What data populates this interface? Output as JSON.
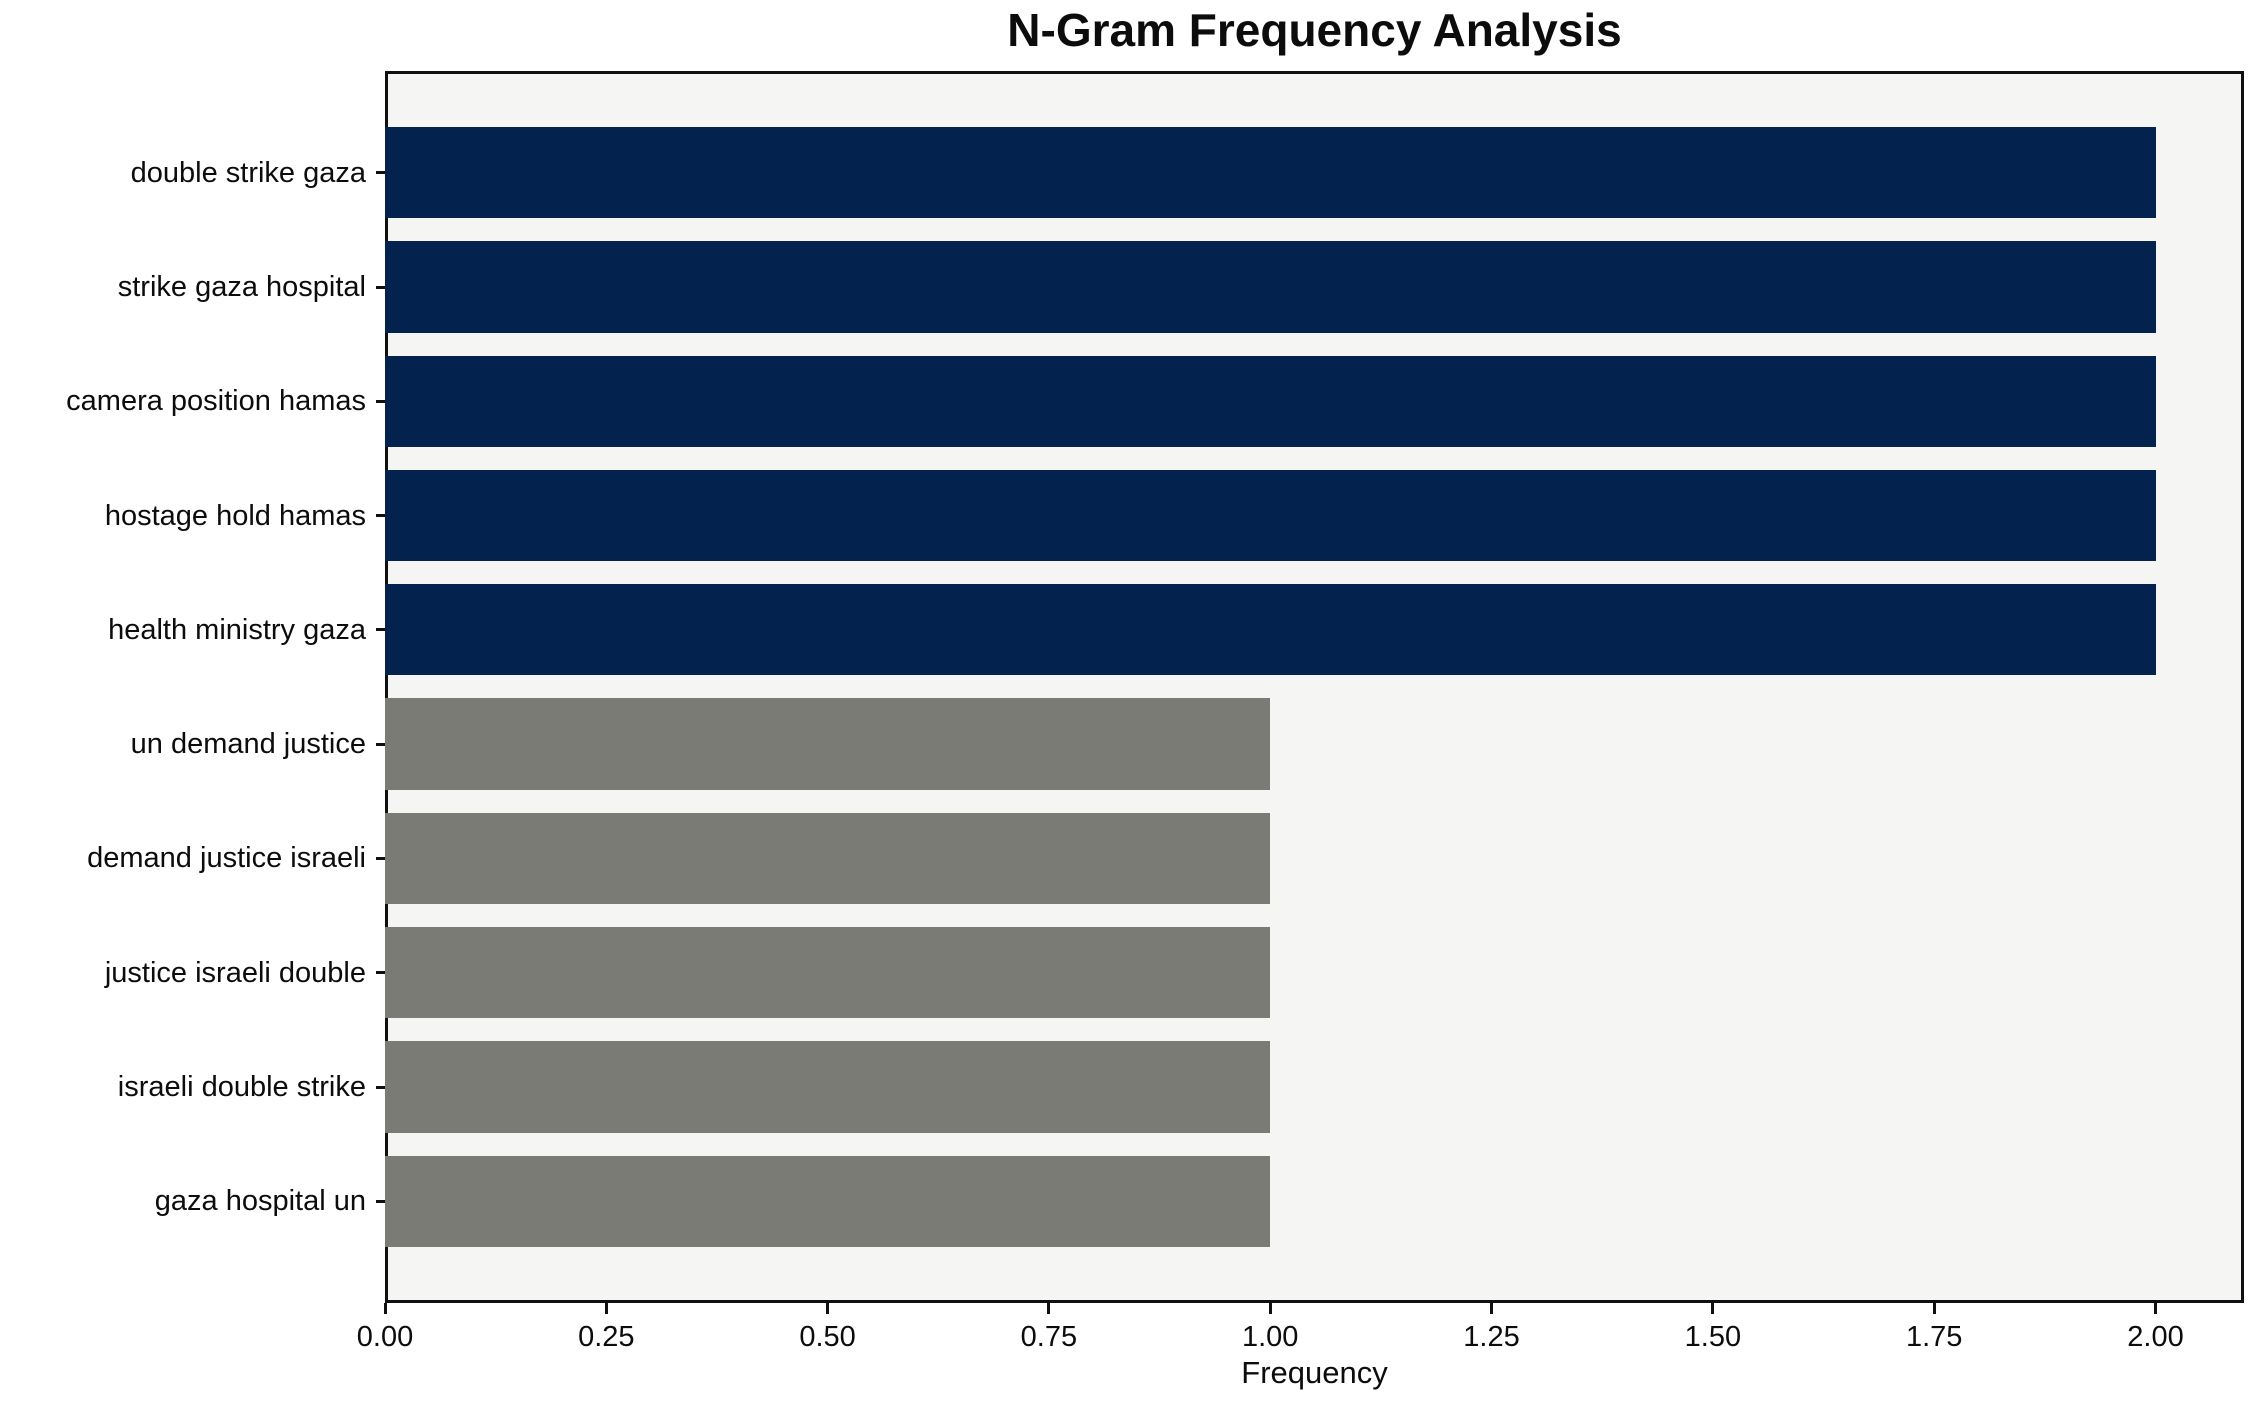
{
  "chart_data": {
    "type": "bar",
    "orientation": "horizontal",
    "title": "N-Gram Frequency Analysis",
    "xlabel": "Frequency",
    "ylabel": "",
    "categories": [
      "double strike gaza",
      "strike gaza hospital",
      "camera position hamas",
      "hostage hold hamas",
      "health ministry gaza",
      "un demand justice",
      "demand justice israeli",
      "justice israeli double",
      "israeli double strike",
      "gaza hospital un"
    ],
    "values": [
      2,
      2,
      2,
      2,
      2,
      1,
      1,
      1,
      1,
      1
    ],
    "bar_colors": [
      "#03234e",
      "#03234e",
      "#03234e",
      "#03234e",
      "#03234e",
      "#7b7b76",
      "#7b7b76",
      "#7b7b76",
      "#7b7b76",
      "#7b7b76"
    ],
    "x_ticks": [
      "0.00",
      "0.25",
      "0.50",
      "0.75",
      "1.00",
      "1.25",
      "1.50",
      "1.75",
      "2.00"
    ],
    "x_tick_values": [
      0,
      0.25,
      0.5,
      0.75,
      1.0,
      1.25,
      1.5,
      1.75,
      2.0
    ],
    "xlim": [
      0,
      2.1
    ],
    "bar_height_fraction": 0.8,
    "grid": false,
    "legend": null,
    "colors": {
      "high_frequency_bar": "#03234e",
      "low_frequency_bar": "#7b7b76",
      "plot_background": "#f5f5f4",
      "figure_background": "#ffffff",
      "spine": "#101010",
      "text": "#0c0c0c"
    }
  }
}
